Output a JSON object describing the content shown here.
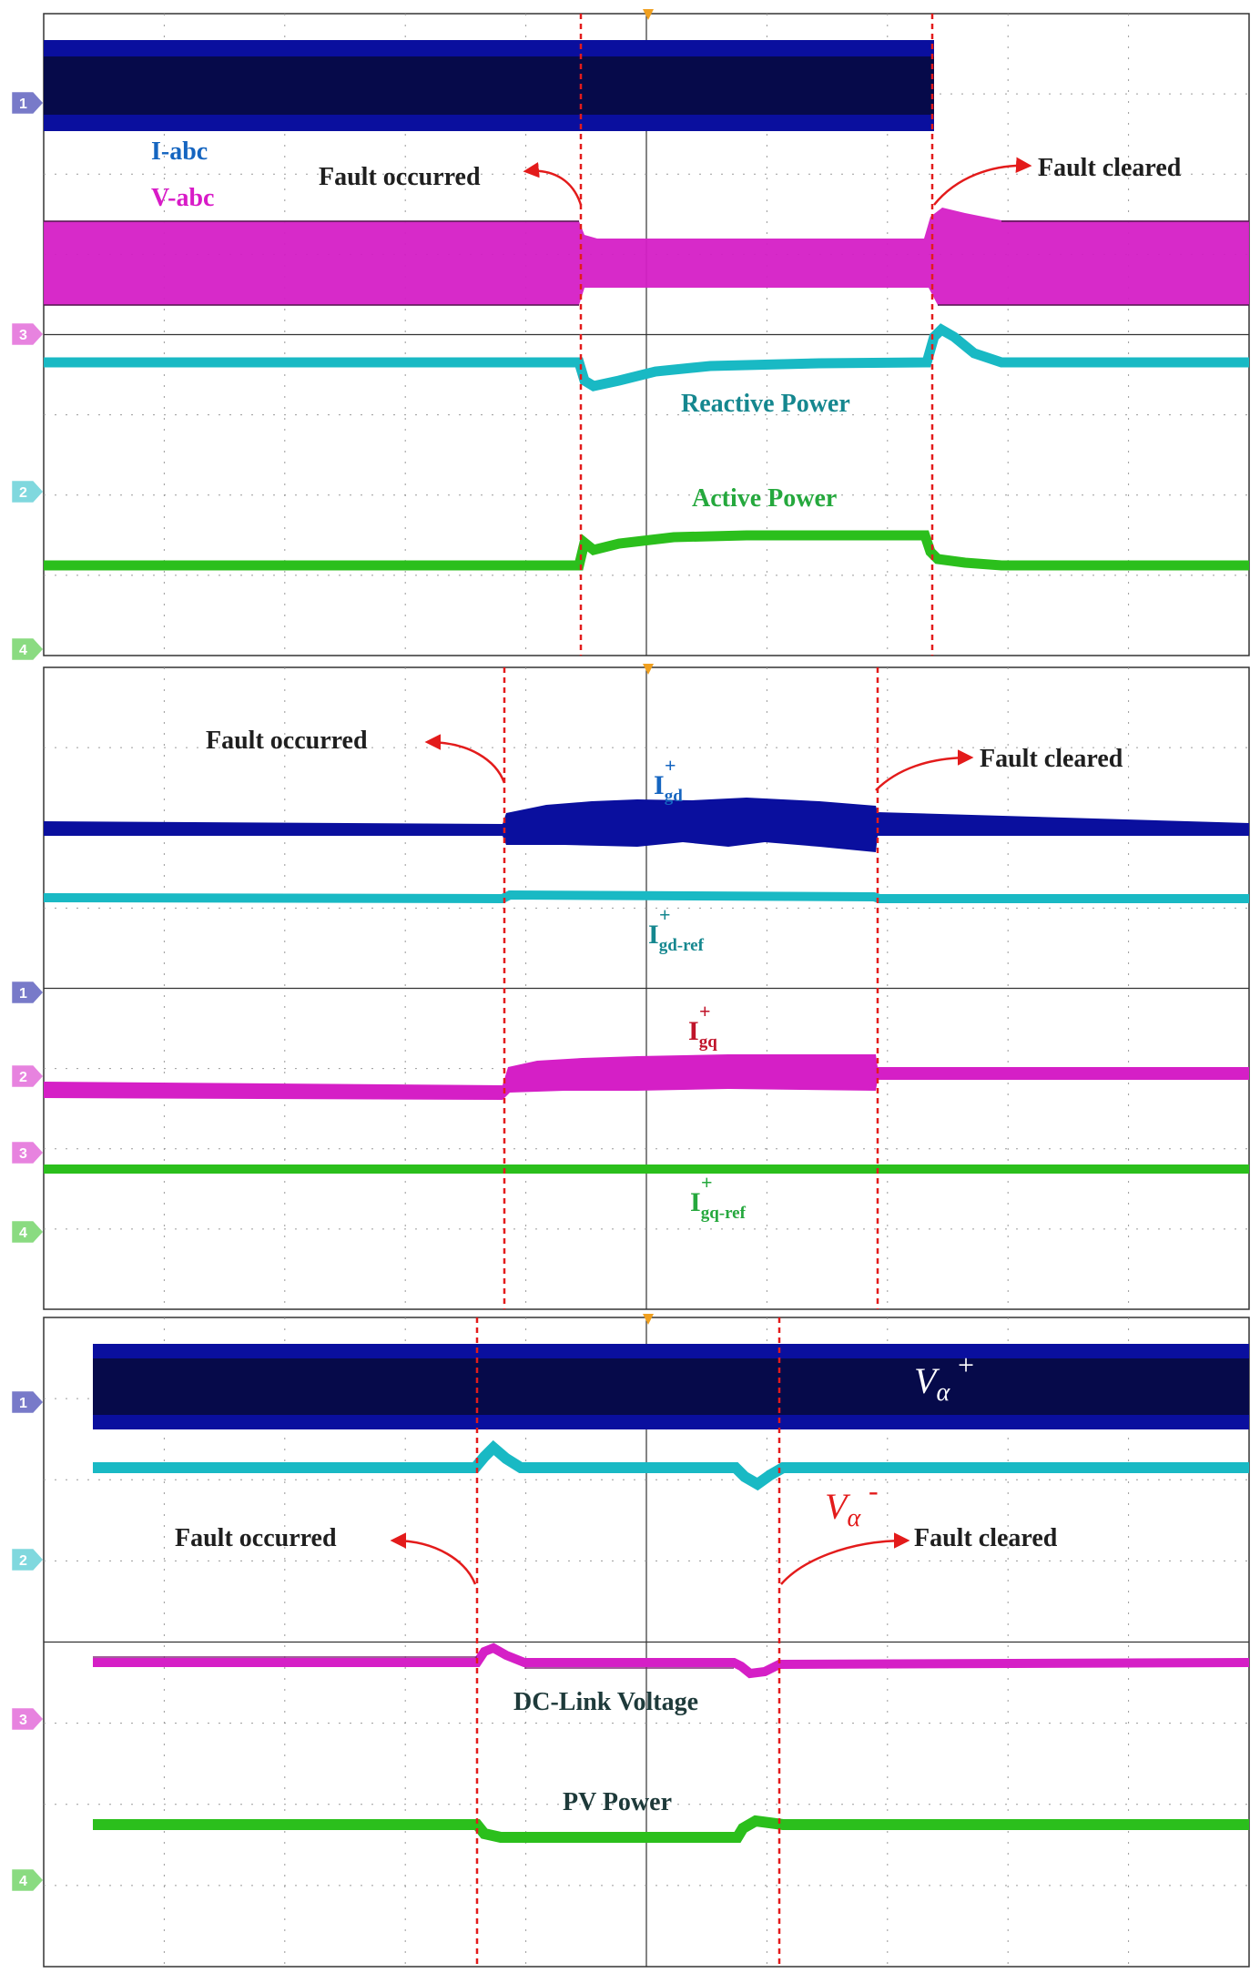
{
  "colors": {
    "dark_blue": "#0a0f9e",
    "navy": "#060a4a",
    "magenta": "#d51fc6",
    "cyan": "#19b9c4",
    "green": "#2bbf1c",
    "fault_line": "#e31b1b",
    "grid": "#8a8a8a",
    "label_blue": "#1565c0",
    "label_magenta": "#d81bc7",
    "label_teal": "#15878f",
    "label_green": "#25a83d",
    "label_crimson": "#c0142a",
    "label_dark": "#1f1f1f"
  },
  "chart_data": [
    {
      "type": "line",
      "grid": true,
      "channels": [
        "1",
        "3",
        "2",
        "4"
      ],
      "series": [
        {
          "name": "I-abc",
          "color": "dark_blue"
        },
        {
          "name": "V-abc",
          "color": "magenta"
        },
        {
          "name": "Reactive Power",
          "color": "cyan"
        },
        {
          "name": "Active Power",
          "color": "green"
        }
      ],
      "annotations": {
        "fault_occurred": "Fault occurred",
        "fault_cleared": "Fault cleared"
      }
    },
    {
      "type": "line",
      "grid": true,
      "channels": [
        "1",
        "2",
        "3",
        "4"
      ],
      "series": [
        {
          "name_main": "I",
          "sup": "+",
          "sub": "gd",
          "color": "dark_blue"
        },
        {
          "name_main": "I",
          "sup": "+",
          "sub": "gd-ref",
          "color": "cyan"
        },
        {
          "name_main": "I",
          "sup": "+",
          "sub": "gq",
          "color": "magenta"
        },
        {
          "name_main": "I",
          "sup": "+",
          "sub": "gq-ref",
          "color": "green"
        }
      ],
      "annotations": {
        "fault_occurred": "Fault occurred",
        "fault_cleared": "Fault cleared"
      }
    },
    {
      "type": "line",
      "grid": true,
      "channels": [
        "1",
        "2",
        "3",
        "4"
      ],
      "series": [
        {
          "name_main": "V",
          "sub": "α",
          "sup": "+",
          "color": "dark_blue"
        },
        {
          "name_main": "V",
          "sub": "α",
          "sup": "-",
          "color": "cyan"
        },
        {
          "name": "DC-Link Voltage",
          "color": "magenta"
        },
        {
          "name": "PV Power",
          "color": "green"
        }
      ],
      "annotations": {
        "fault_occurred": "Fault occurred",
        "fault_cleared": "Fault cleared"
      }
    }
  ]
}
